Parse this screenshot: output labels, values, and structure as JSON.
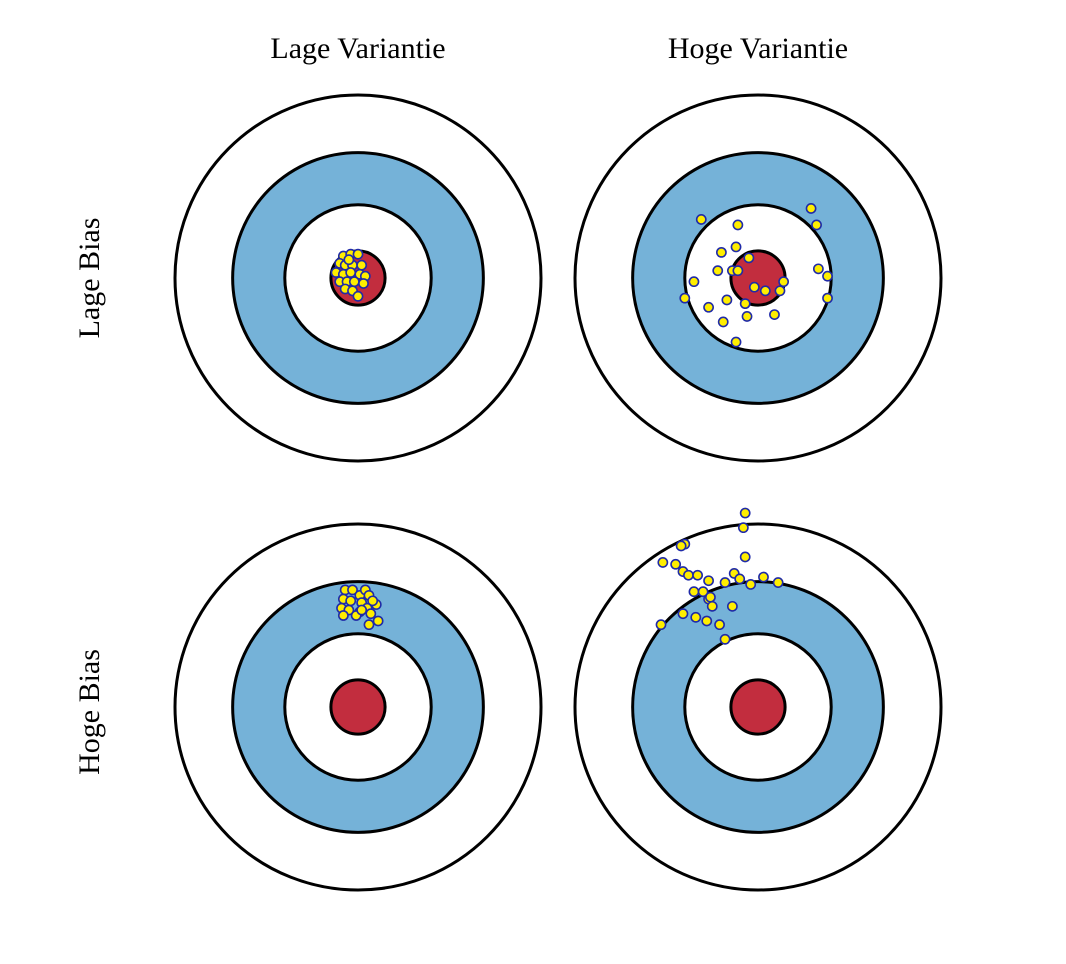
{
  "columns": [
    "Lage Variantie",
    "Hoge Variantie"
  ],
  "rows": [
    "Lage Bias",
    "Hoge Bias"
  ],
  "colors": {
    "ring_blue": "#75b2d8",
    "bullseye_red": "#c22d3e",
    "ring_white": "#ffffff",
    "stroke": "#000000",
    "dot_fill": "#ffee00",
    "dot_stroke": "#1f2aa8"
  },
  "chart_data": {
    "type": "scatter",
    "targets": [
      {
        "row": "Lage Bias",
        "column": "Lage Variantie",
        "points": [
          [
            -0.08,
            0.12
          ],
          [
            -0.04,
            0.13
          ],
          [
            0,
            0.13
          ],
          [
            -0.1,
            0.08
          ],
          [
            -0.07,
            0.07
          ],
          [
            -0.03,
            0.07
          ],
          [
            0.02,
            0.07
          ],
          [
            -0.12,
            0.03
          ],
          [
            -0.08,
            0.02
          ],
          [
            -0.04,
            0.03
          ],
          [
            0.01,
            0.02
          ],
          [
            0.04,
            0.01
          ],
          [
            -0.1,
            -0.02
          ],
          [
            -0.06,
            -0.02
          ],
          [
            -0.02,
            -0.02
          ],
          [
            0.03,
            -0.03
          ],
          [
            -0.07,
            -0.06
          ],
          [
            -0.03,
            -0.07
          ],
          [
            0,
            -0.1
          ],
          [
            -0.05,
            0.1
          ]
        ]
      },
      {
        "row": "Lage Bias",
        "column": "Hoge Variantie",
        "points": [
          [
            -0.31,
            0.32
          ],
          [
            -0.11,
            0.29
          ],
          [
            0.29,
            0.38
          ],
          [
            0.32,
            0.29
          ],
          [
            -0.2,
            0.14
          ],
          [
            -0.12,
            0.17
          ],
          [
            -0.05,
            0.11
          ],
          [
            -0.22,
            0.04
          ],
          [
            -0.14,
            0.04
          ],
          [
            -0.11,
            0.04
          ],
          [
            0.33,
            0.05
          ],
          [
            0.38,
            0.01
          ],
          [
            -0.4,
            -0.11
          ],
          [
            -0.35,
            -0.02
          ],
          [
            -0.27,
            -0.16
          ],
          [
            -0.17,
            -0.12
          ],
          [
            -0.02,
            -0.05
          ],
          [
            0.04,
            -0.07
          ],
          [
            0.12,
            -0.07
          ],
          [
            -0.19,
            -0.24
          ],
          [
            -0.06,
            -0.21
          ],
          [
            0.09,
            -0.2
          ],
          [
            0.14,
            -0.02
          ],
          [
            0.38,
            -0.11
          ],
          [
            -0.12,
            -0.35
          ],
          [
            -0.07,
            -0.14
          ]
        ]
      },
      {
        "row": "Hoge Bias",
        "column": "Lage Variantie",
        "points": [
          [
            -0.07,
            0.64
          ],
          [
            -0.03,
            0.64
          ],
          [
            0.01,
            0.61
          ],
          [
            0.04,
            0.64
          ],
          [
            -0.08,
            0.59
          ],
          [
            -0.04,
            0.58
          ],
          [
            0.02,
            0.57
          ],
          [
            0.06,
            0.61
          ],
          [
            -0.09,
            0.54
          ],
          [
            -0.05,
            0.53
          ],
          [
            0.01,
            0.52
          ],
          [
            0.05,
            0.54
          ],
          [
            0.1,
            0.56
          ],
          [
            -0.08,
            0.5
          ],
          [
            -0.01,
            0.5
          ],
          [
            0.07,
            0.51
          ],
          [
            0.11,
            0.47
          ],
          [
            0.06,
            0.45
          ],
          [
            0.02,
            0.53
          ],
          [
            0.08,
            0.58
          ]
        ]
      },
      {
        "row": "Hoge Bias",
        "column": "Hoge Variantie",
        "points": [
          [
            -0.07,
            1.06
          ],
          [
            -0.08,
            0.98
          ],
          [
            -0.4,
            0.89
          ],
          [
            -0.42,
            0.88
          ],
          [
            -0.45,
            0.78
          ],
          [
            -0.52,
            0.79
          ],
          [
            -0.07,
            0.82
          ],
          [
            -0.41,
            0.74
          ],
          [
            -0.38,
            0.72
          ],
          [
            -0.33,
            0.72
          ],
          [
            -0.27,
            0.69
          ],
          [
            -0.13,
            0.73
          ],
          [
            -0.04,
            0.67
          ],
          [
            -0.18,
            0.68
          ],
          [
            -0.1,
            0.7
          ],
          [
            0.03,
            0.71
          ],
          [
            0.11,
            0.68
          ],
          [
            -0.35,
            0.63
          ],
          [
            -0.3,
            0.63
          ],
          [
            -0.27,
            0.59
          ],
          [
            -0.14,
            0.55
          ],
          [
            -0.41,
            0.51
          ],
          [
            -0.34,
            0.49
          ],
          [
            -0.28,
            0.47
          ],
          [
            -0.21,
            0.45
          ],
          [
            -0.53,
            0.45
          ],
          [
            -0.18,
            0.37
          ],
          [
            -0.26,
            0.6
          ],
          [
            -0.25,
            0.55
          ]
        ]
      }
    ]
  }
}
